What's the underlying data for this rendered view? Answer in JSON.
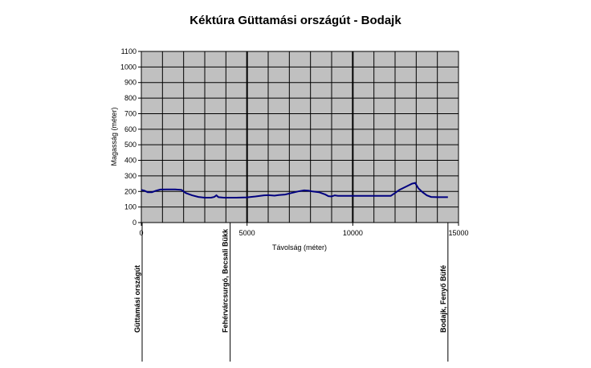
{
  "chart_data": {
    "type": "line",
    "title": "Kéktúra Güttamási országút - Bodajk",
    "xlabel": "Távolság (méter)",
    "ylabel": "Magasság (méter)",
    "xlim": [
      0,
      15000
    ],
    "ylim": [
      0,
      1100
    ],
    "xticks": [
      0,
      5000,
      10000,
      15000
    ],
    "xtick_labels": [
      "0",
      "5000",
      "10000",
      "15000"
    ],
    "yticks": [
      0,
      100,
      200,
      300,
      400,
      500,
      600,
      700,
      800,
      900,
      1000,
      1100
    ],
    "ytick_labels": [
      "0",
      "100",
      "200",
      "300",
      "400",
      "500",
      "600",
      "700",
      "800",
      "900",
      "1000",
      "1100"
    ],
    "grid": true,
    "plot_background": "#c0c0c0",
    "line_color": "#000080",
    "series": [
      {
        "values": [
          [
            0,
            210
          ],
          [
            150,
            205
          ],
          [
            300,
            195
          ],
          [
            500,
            195
          ],
          [
            700,
            205
          ],
          [
            900,
            212
          ],
          [
            1200,
            213
          ],
          [
            1600,
            213
          ],
          [
            1900,
            210
          ],
          [
            2100,
            190
          ],
          [
            2400,
            175
          ],
          [
            2700,
            165
          ],
          [
            3000,
            160
          ],
          [
            3300,
            160
          ],
          [
            3450,
            165
          ],
          [
            3550,
            175
          ],
          [
            3650,
            163
          ],
          [
            3900,
            160
          ],
          [
            4500,
            160
          ],
          [
            5000,
            162
          ],
          [
            5400,
            168
          ],
          [
            5800,
            175
          ],
          [
            6000,
            176
          ],
          [
            6300,
            173
          ],
          [
            6500,
            177
          ],
          [
            6800,
            180
          ],
          [
            7100,
            190
          ],
          [
            7400,
            200
          ],
          [
            7700,
            207
          ],
          [
            7900,
            205
          ],
          [
            8100,
            200
          ],
          [
            8400,
            195
          ],
          [
            8700,
            180
          ],
          [
            8850,
            170
          ],
          [
            9000,
            168
          ],
          [
            9150,
            175
          ],
          [
            9300,
            172
          ],
          [
            10000,
            172
          ],
          [
            11000,
            172
          ],
          [
            11800,
            172
          ],
          [
            12000,
            190
          ],
          [
            12200,
            210
          ],
          [
            12500,
            230
          ],
          [
            12800,
            250
          ],
          [
            12950,
            255
          ],
          [
            13100,
            220
          ],
          [
            13300,
            195
          ],
          [
            13500,
            175
          ],
          [
            13700,
            165
          ],
          [
            14000,
            163
          ],
          [
            14500,
            163
          ]
        ]
      }
    ],
    "markers": [
      {
        "x": 0,
        "label": "Güttamási országút"
      },
      {
        "x": 4200,
        "label": "Fehérvárcsurgó, Becsali Bükk"
      },
      {
        "x": 14500,
        "label": "Bodajk, Fenyő Büfé"
      }
    ]
  }
}
